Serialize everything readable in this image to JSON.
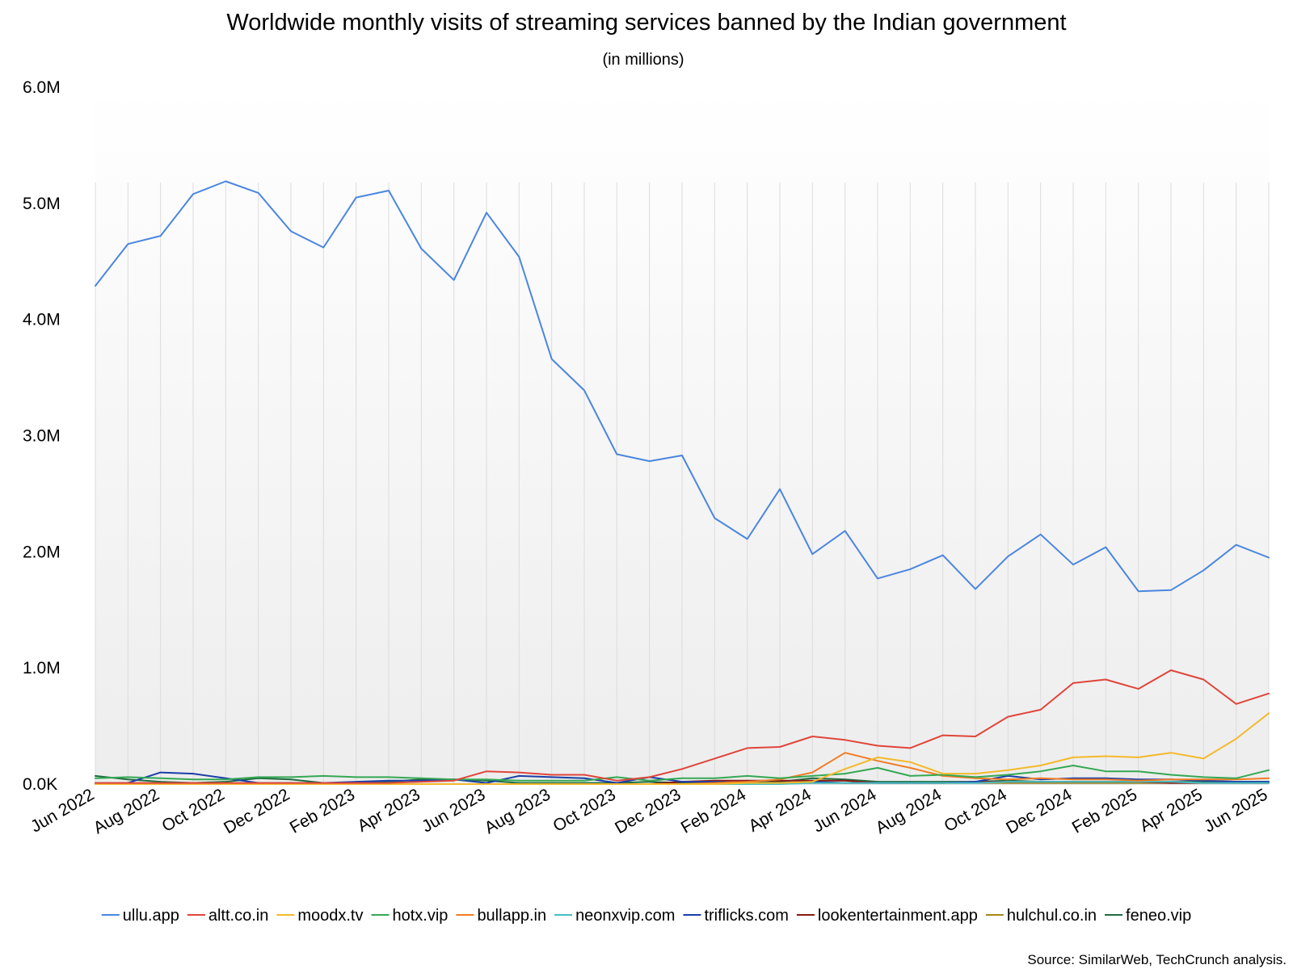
{
  "chart_data": {
    "type": "line",
    "title": "Worldwide monthly visits of streaming services banned by the Indian government",
    "subtitle": "(in millions)",
    "source": "Source: SimilarWeb, TechCrunch analysis.",
    "x": [
      "Jun 2022",
      "Jul 2022",
      "Aug 2022",
      "Sep 2022",
      "Oct 2022",
      "Nov 2022",
      "Dec 2022",
      "Jan 2023",
      "Feb 2023",
      "Mar 2023",
      "Apr 2023",
      "May 2023",
      "Jun 2023",
      "Jul 2023",
      "Aug 2023",
      "Sep 2023",
      "Oct 2023",
      "Nov 2023",
      "Dec 2023",
      "Jan 2024",
      "Feb 2024",
      "Mar 2024",
      "Apr 2024",
      "May 2024",
      "Jun 2024",
      "Jul 2024",
      "Aug 2024",
      "Sep 2024",
      "Oct 2024",
      "Nov 2024",
      "Dec 2024",
      "Jan 2025",
      "Feb 2025",
      "Mar 2025",
      "Apr 2025",
      "May 2025",
      "Jun 2025"
    ],
    "x_tick_labels": [
      "Jun 2022",
      "Aug 2022",
      "Oct 2022",
      "Dec 2022",
      "Feb 2023",
      "Apr 2023",
      "Jun 2023",
      "Aug 2023",
      "Oct 2023",
      "Dec 2023",
      "Feb 2024",
      "Apr 2024",
      "Jun 2024",
      "Aug 2024",
      "Oct 2024",
      "Dec 2024",
      "Feb 2025",
      "Apr 2025",
      "Jun 2025"
    ],
    "y_ticks": [
      0,
      1,
      2,
      3,
      4,
      5,
      6
    ],
    "y_tick_labels": [
      "0.0K",
      "1.0M",
      "2.0M",
      "3.0M",
      "4.0M",
      "5.0M",
      "6.0M"
    ],
    "ylim": [
      0,
      6
    ],
    "grid": "vertical",
    "legend_position": "bottom",
    "series": [
      {
        "name": "ullu.app",
        "color": "#4a86e0",
        "values": [
          4.29,
          4.65,
          4.72,
          5.08,
          5.19,
          5.09,
          4.76,
          4.62,
          5.05,
          5.11,
          4.61,
          4.34,
          4.92,
          4.54,
          3.66,
          3.39,
          2.84,
          2.78,
          2.83,
          2.29,
          2.11,
          2.54,
          1.98,
          2.18,
          1.77,
          1.85,
          1.97,
          1.68,
          1.96,
          2.15,
          1.89,
          2.04,
          1.66,
          1.67,
          1.84,
          2.06,
          1.95
        ]
      },
      {
        "name": "altt.co.in",
        "color": "#e0453a",
        "values": [
          0.01,
          0.01,
          0.01,
          0.01,
          0.01,
          0.01,
          0.01,
          0.01,
          0.01,
          0.01,
          0.02,
          0.03,
          0.11,
          0.1,
          0.08,
          0.08,
          0.03,
          0.06,
          0.13,
          0.22,
          0.31,
          0.32,
          0.41,
          0.38,
          0.33,
          0.31,
          0.42,
          0.41,
          0.58,
          0.64,
          0.87,
          0.9,
          0.82,
          0.98,
          0.9,
          0.69,
          0.78
        ]
      },
      {
        "name": "moodx.tv",
        "color": "#f4b92b",
        "values": [
          0,
          0,
          0,
          0,
          0,
          0,
          0,
          0,
          0,
          0,
          0,
          0,
          0,
          0,
          0,
          0,
          0,
          0,
          0,
          0,
          0.01,
          0.01,
          0.02,
          0.13,
          0.23,
          0.19,
          0.09,
          0.09,
          0.12,
          0.16,
          0.23,
          0.24,
          0.23,
          0.27,
          0.22,
          0.39,
          0.61
        ]
      },
      {
        "name": "hotx.vip",
        "color": "#34a853",
        "values": [
          0.05,
          0.06,
          0.05,
          0.04,
          0.04,
          0.06,
          0.06,
          0.07,
          0.06,
          0.06,
          0.05,
          0.04,
          0.04,
          0.03,
          0.03,
          0.03,
          0.06,
          0.03,
          0.05,
          0.05,
          0.07,
          0.05,
          0.07,
          0.09,
          0.14,
          0.07,
          0.08,
          0.06,
          0.08,
          0.11,
          0.16,
          0.11,
          0.11,
          0.08,
          0.06,
          0.05,
          0.12
        ]
      },
      {
        "name": "bullapp.in",
        "color": "#f07c24",
        "values": [
          0,
          0,
          0,
          0,
          0,
          0,
          0,
          0,
          0,
          0,
          0,
          0,
          0,
          0,
          0,
          0,
          0,
          0,
          0,
          0.01,
          0.02,
          0.04,
          0.1,
          0.27,
          0.2,
          0.14,
          0.07,
          0.05,
          0.04,
          0.05,
          0.04,
          0.04,
          0.03,
          0.04,
          0.04,
          0.04,
          0.05
        ]
      },
      {
        "name": "neonxvip.com",
        "color": "#46bdc6",
        "values": [
          0,
          0,
          0,
          0,
          0,
          0,
          0,
          0,
          0,
          0,
          0,
          0,
          0,
          0,
          0,
          0,
          0,
          0,
          0,
          0,
          0,
          0,
          0.01,
          0.01,
          0.01,
          0.01,
          0.01,
          0.01,
          0.02,
          0.02,
          0.02,
          0.02,
          0.02,
          0.02,
          0.01,
          0.01,
          0.01
        ]
      },
      {
        "name": "triflicks.com",
        "color": "#1a3ea8",
        "values": [
          0.01,
          0.01,
          0.1,
          0.09,
          0.05,
          0.01,
          0.01,
          0.01,
          0.02,
          0.03,
          0.03,
          0.04,
          0.01,
          0.07,
          0.06,
          0.05,
          0.01,
          0.06,
          0.02,
          0.02,
          0.01,
          0.01,
          0.02,
          0.01,
          0.01,
          0.01,
          0.01,
          0.02,
          0.07,
          0.04,
          0.05,
          0.05,
          0.04,
          0.04,
          0.03,
          0.02,
          0.02
        ]
      },
      {
        "name": "lookentertainment.app",
        "color": "#8b1a12",
        "values": [
          0,
          0,
          0,
          0,
          0,
          0,
          0,
          0,
          0,
          0,
          0,
          0,
          0,
          0,
          0,
          0,
          0,
          0,
          0.02,
          0.03,
          0.03,
          0.03,
          0.03,
          0.03,
          0.01,
          0.01,
          0.01,
          0.02,
          0.02,
          0.02,
          0.02,
          0.02,
          0.02,
          0.01,
          0.01,
          0.01,
          0.01
        ]
      },
      {
        "name": "hulchul.co.in",
        "color": "#a5861a",
        "values": [
          0,
          0,
          0,
          0,
          0,
          0,
          0,
          0,
          0,
          0,
          0,
          0,
          0,
          0,
          0,
          0,
          0,
          0,
          0,
          0,
          0,
          0.01,
          0.01,
          0.01,
          0.01,
          0.01,
          0.01,
          0.01,
          0.01,
          0.01,
          0.01,
          0.01,
          0.01,
          0.01,
          0.01,
          0.01,
          0.01
        ]
      },
      {
        "name": "feneo.vip",
        "color": "#1f6b3f",
        "values": [
          0.07,
          0.04,
          0.02,
          0.01,
          0.02,
          0.05,
          0.04,
          0.01,
          0.01,
          0.02,
          0.04,
          0.04,
          0.03,
          0.01,
          0.01,
          0.01,
          0.01,
          0.02,
          0.01,
          0.01,
          0.01,
          0.02,
          0.05,
          0.04,
          0.02,
          0.02,
          0.02,
          0.02,
          0.03,
          0.02,
          0.02,
          0.02,
          0.02,
          0.02,
          0.02,
          0.02,
          0.02
        ]
      }
    ]
  }
}
